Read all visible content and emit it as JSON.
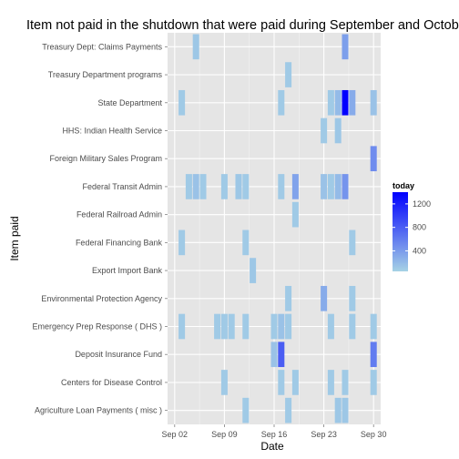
{
  "chart_data": {
    "type": "heatmap",
    "title": "Item not paid in the shutdown that were paid during September and October",
    "xlabel": "Date",
    "ylabel": "Item paid",
    "x_ticks": [
      "Sep 02",
      "Sep 09",
      "Sep 16",
      "Sep 23",
      "Sep 30"
    ],
    "x_tick_days": [
      2,
      9,
      16,
      23,
      30
    ],
    "x_range_days": [
      1,
      31
    ],
    "categories": [
      "Agriculture Loan Payments ( misc )",
      "Centers for Disease Control",
      "Deposit Insurance Fund",
      "Emergency Prep Response ( DHS )",
      "Environmental Protection Agency",
      "Export Import Bank",
      "Federal Financing Bank",
      "Federal Railroad Admin",
      "Federal Transit Admin",
      "Foreign Military Sales Program",
      "HHS: Indian Health Service",
      "State Department",
      "Treasury Department programs",
      "Treasury Dept: Claims Payments"
    ],
    "legend": {
      "title": "today",
      "ticks": [
        400,
        800,
        1200
      ],
      "range": [
        50,
        1400
      ],
      "color_low": "#a6d2e5",
      "color_high": "#0000ff",
      "placement": "right"
    },
    "cells": [
      {
        "item": "Treasury Dept: Claims Payments",
        "day": 5,
        "value": 120
      },
      {
        "item": "Treasury Dept: Claims Payments",
        "day": 26,
        "value": 380
      },
      {
        "item": "Treasury Department programs",
        "day": 18,
        "value": 100
      },
      {
        "item": "State Department",
        "day": 3,
        "value": 100
      },
      {
        "item": "State Department",
        "day": 17,
        "value": 100
      },
      {
        "item": "State Department",
        "day": 24,
        "value": 100
      },
      {
        "item": "State Department",
        "day": 25,
        "value": 200
      },
      {
        "item": "State Department",
        "day": 26,
        "value": 1400
      },
      {
        "item": "State Department",
        "day": 27,
        "value": 300
      },
      {
        "item": "State Department",
        "day": 30,
        "value": 150
      },
      {
        "item": "HHS: Indian Health Service",
        "day": 23,
        "value": 100
      },
      {
        "item": "HHS: Indian Health Service",
        "day": 25,
        "value": 120
      },
      {
        "item": "Foreign Military Sales Program",
        "day": 30,
        "value": 500
      },
      {
        "item": "Federal Transit Admin",
        "day": 4,
        "value": 100
      },
      {
        "item": "Federal Transit Admin",
        "day": 5,
        "value": 150
      },
      {
        "item": "Federal Transit Admin",
        "day": 6,
        "value": 100
      },
      {
        "item": "Federal Transit Admin",
        "day": 9,
        "value": 100
      },
      {
        "item": "Federal Transit Admin",
        "day": 11,
        "value": 120
      },
      {
        "item": "Federal Transit Admin",
        "day": 12,
        "value": 100
      },
      {
        "item": "Federal Transit Admin",
        "day": 17,
        "value": 100
      },
      {
        "item": "Federal Transit Admin",
        "day": 19,
        "value": 350
      },
      {
        "item": "Federal Transit Admin",
        "day": 23,
        "value": 150
      },
      {
        "item": "Federal Transit Admin",
        "day": 24,
        "value": 100
      },
      {
        "item": "Federal Transit Admin",
        "day": 25,
        "value": 200
      },
      {
        "item": "Federal Transit Admin",
        "day": 26,
        "value": 450
      },
      {
        "item": "Federal Railroad Admin",
        "day": 19,
        "value": 100
      },
      {
        "item": "Federal Financing Bank",
        "day": 3,
        "value": 100
      },
      {
        "item": "Federal Financing Bank",
        "day": 12,
        "value": 100
      },
      {
        "item": "Federal Financing Bank",
        "day": 27,
        "value": 100
      },
      {
        "item": "Export Import Bank",
        "day": 13,
        "value": 120
      },
      {
        "item": "Environmental Protection Agency",
        "day": 18,
        "value": 100
      },
      {
        "item": "Environmental Protection Agency",
        "day": 23,
        "value": 300
      },
      {
        "item": "Environmental Protection Agency",
        "day": 27,
        "value": 100
      },
      {
        "item": "Emergency Prep Response ( DHS )",
        "day": 3,
        "value": 100
      },
      {
        "item": "Emergency Prep Response ( DHS )",
        "day": 8,
        "value": 100
      },
      {
        "item": "Emergency Prep Response ( DHS )",
        "day": 9,
        "value": 100
      },
      {
        "item": "Emergency Prep Response ( DHS )",
        "day": 10,
        "value": 100
      },
      {
        "item": "Emergency Prep Response ( DHS )",
        "day": 12,
        "value": 100
      },
      {
        "item": "Emergency Prep Response ( DHS )",
        "day": 16,
        "value": 100
      },
      {
        "item": "Emergency Prep Response ( DHS )",
        "day": 17,
        "value": 150
      },
      {
        "item": "Emergency Prep Response ( DHS )",
        "day": 18,
        "value": 100
      },
      {
        "item": "Emergency Prep Response ( DHS )",
        "day": 24,
        "value": 100
      },
      {
        "item": "Emergency Prep Response ( DHS )",
        "day": 27,
        "value": 100
      },
      {
        "item": "Emergency Prep Response ( DHS )",
        "day": 30,
        "value": 100
      },
      {
        "item": "Deposit Insurance Fund",
        "day": 16,
        "value": 150
      },
      {
        "item": "Deposit Insurance Fund",
        "day": 17,
        "value": 800
      },
      {
        "item": "Deposit Insurance Fund",
        "day": 30,
        "value": 600
      },
      {
        "item": "Centers for Disease Control",
        "day": 9,
        "value": 100
      },
      {
        "item": "Centers for Disease Control",
        "day": 17,
        "value": 100
      },
      {
        "item": "Centers for Disease Control",
        "day": 19,
        "value": 100
      },
      {
        "item": "Centers for Disease Control",
        "day": 24,
        "value": 100
      },
      {
        "item": "Centers for Disease Control",
        "day": 26,
        "value": 100
      },
      {
        "item": "Centers for Disease Control",
        "day": 30,
        "value": 100
      },
      {
        "item": "Agriculture Loan Payments ( misc )",
        "day": 12,
        "value": 100
      },
      {
        "item": "Agriculture Loan Payments ( misc )",
        "day": 18,
        "value": 100
      },
      {
        "item": "Agriculture Loan Payments ( misc )",
        "day": 25,
        "value": 120
      },
      {
        "item": "Agriculture Loan Payments ( misc )",
        "day": 26,
        "value": 120
      }
    ]
  }
}
